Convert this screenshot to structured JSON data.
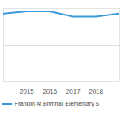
{
  "chart_data": {
    "type": "line",
    "x": [
      2014,
      2015,
      2016,
      2017,
      2018,
      2019
    ],
    "series": [
      {
        "name": "Franklin At Brimhall Elementary S",
        "color": "#3a9ad9",
        "values": [
          93,
          96,
          96,
          89,
          89,
          93
        ]
      }
    ],
    "xlim": [
      2014,
      2019
    ],
    "xticks": [
      2015,
      2016,
      2017,
      2018
    ],
    "ylim": [
      0,
      100
    ],
    "yticks": [
      0,
      50,
      100
    ],
    "grid": true,
    "tick_labels": "x",
    "legend": "bottom"
  }
}
